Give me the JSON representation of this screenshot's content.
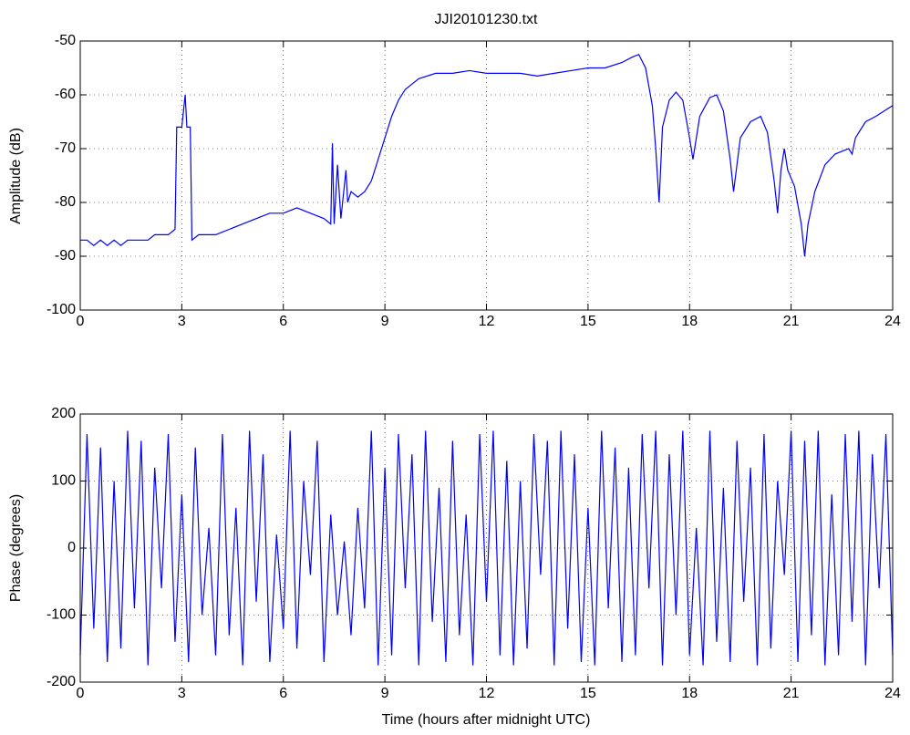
{
  "chart_data": [
    {
      "type": "line",
      "title": "JJI20101230.txt",
      "y_label": "Amplitude (dB)",
      "x": [
        0,
        0.2,
        0.4,
        0.6,
        0.8,
        1,
        1.2,
        1.4,
        1.6,
        1.8,
        2,
        2.2,
        2.4,
        2.6,
        2.8,
        2.85,
        3,
        3.1,
        3.15,
        3.25,
        3.3,
        3.5,
        3.8,
        4,
        4.4,
        4.8,
        5.2,
        5.6,
        6,
        6.4,
        6.8,
        7.2,
        7.4,
        7.45,
        7.5,
        7.6,
        7.7,
        7.85,
        7.9,
        8,
        8.2,
        8.4,
        8.6,
        8.8,
        9,
        9.2,
        9.4,
        9.6,
        9.8,
        10,
        10.5,
        11,
        11.5,
        12,
        12.5,
        13,
        13.5,
        14,
        14.5,
        15,
        15.5,
        16,
        16.3,
        16.5,
        16.7,
        16.9,
        17,
        17.1,
        17.2,
        17.4,
        17.6,
        17.8,
        18,
        18.1,
        18.3,
        18.6,
        18.8,
        19,
        19.2,
        19.3,
        19.5,
        19.8,
        20.1,
        20.3,
        20.5,
        20.6,
        20.7,
        20.8,
        20.9,
        21.1,
        21.3,
        21.4,
        21.5,
        21.7,
        22,
        22.3,
        22.7,
        22.8,
        22.9,
        23.2,
        23.5,
        24
      ],
      "series": [
        {
          "color": "#0000ff",
          "values": [
            -87,
            -87,
            -88,
            -87,
            -88,
            -87,
            -88,
            -87,
            -87,
            -87,
            -87,
            -86,
            -86,
            -86,
            -85,
            -66,
            -66,
            -60,
            -66,
            -66,
            -87,
            -86,
            -86,
            -86,
            -85,
            -84,
            -83,
            -82,
            -82,
            -81,
            -82,
            -83,
            -84,
            -69,
            -84,
            -73,
            -83,
            -74,
            -80,
            -78,
            -79,
            -78,
            -76,
            -72,
            -68,
            -64,
            -61,
            -59,
            -58,
            -57,
            -56,
            -56,
            -55.5,
            -56,
            -56,
            -56,
            -56.5,
            -56,
            -55.5,
            -55,
            -55,
            -54,
            -53,
            -52.5,
            -55,
            -62,
            -70,
            -80,
            -66,
            -61,
            -59.5,
            -61,
            -68,
            -72,
            -64,
            -60.5,
            -60,
            -63,
            -72,
            -78,
            -68,
            -65,
            -64,
            -67,
            -76,
            -82,
            -74,
            -70,
            -74,
            -77,
            -84,
            -90,
            -84,
            -78,
            -73,
            -71,
            -70,
            -71,
            -68,
            -65,
            -64,
            -62
          ]
        }
      ],
      "xlim": [
        0,
        24
      ],
      "xticks": [
        0,
        3,
        6,
        9,
        12,
        15,
        18,
        21,
        24
      ],
      "ylim": [
        -100,
        -50
      ],
      "yticks": [
        -100,
        -90,
        -80,
        -70,
        -60,
        -50
      ],
      "grid": true
    },
    {
      "type": "line",
      "x_label": "Time (hours after midnight UTC)",
      "y_label": "Phase (degrees)",
      "x": [
        0,
        0.2,
        0.4,
        0.6,
        0.8,
        1,
        1.2,
        1.4,
        1.6,
        1.8,
        2,
        2.2,
        2.4,
        2.6,
        2.8,
        3,
        3.2,
        3.4,
        3.6,
        3.8,
        4,
        4.2,
        4.4,
        4.6,
        4.8,
        5,
        5.2,
        5.4,
        5.6,
        5.8,
        6,
        6.2,
        6.4,
        6.6,
        6.8,
        7,
        7.2,
        7.4,
        7.6,
        7.8,
        8,
        8.2,
        8.4,
        8.6,
        8.8,
        9,
        9.2,
        9.4,
        9.6,
        9.8,
        10,
        10.2,
        10.4,
        10.6,
        10.8,
        11,
        11.2,
        11.4,
        11.6,
        11.8,
        12,
        12.2,
        12.4,
        12.6,
        12.8,
        13,
        13.2,
        13.4,
        13.6,
        13.8,
        14,
        14.2,
        14.4,
        14.6,
        14.8,
        15,
        15.2,
        15.4,
        15.6,
        15.8,
        16,
        16.2,
        16.4,
        16.6,
        16.8,
        17,
        17.2,
        17.4,
        17.6,
        17.8,
        18,
        18.2,
        18.4,
        18.6,
        18.8,
        19,
        19.2,
        19.4,
        19.6,
        19.8,
        20,
        20.2,
        20.4,
        20.6,
        20.8,
        21,
        21.2,
        21.4,
        21.6,
        21.8,
        22,
        22.2,
        22.4,
        22.6,
        22.8,
        23,
        23.2,
        23.4,
        23.6,
        23.8,
        24
      ],
      "series": [
        {
          "color": "#0000ff",
          "values": [
            -160,
            170,
            -120,
            150,
            -170,
            100,
            -150,
            175,
            -90,
            160,
            -175,
            120,
            -60,
            170,
            -140,
            80,
            -170,
            150,
            -100,
            30,
            -160,
            170,
            -130,
            60,
            -175,
            175,
            -80,
            140,
            -170,
            20,
            -120,
            175,
            -150,
            100,
            -40,
            160,
            -170,
            50,
            -100,
            10,
            -130,
            60,
            -90,
            175,
            -175,
            120,
            -160,
            170,
            -60,
            140,
            -175,
            175,
            -110,
            90,
            -170,
            160,
            -130,
            50,
            -175,
            170,
            -80,
            175,
            -160,
            130,
            -175,
            100,
            -150,
            170,
            -40,
            160,
            -175,
            175,
            -120,
            140,
            -170,
            60,
            -175,
            175,
            -90,
            150,
            -170,
            120,
            -160,
            170,
            -60,
            175,
            -175,
            140,
            -100,
            175,
            -160,
            30,
            -175,
            175,
            -140,
            90,
            -170,
            160,
            -80,
            120,
            -175,
            170,
            -150,
            100,
            -40,
            175,
            -170,
            160,
            -130,
            175,
            -175,
            80,
            -160,
            170,
            -110,
            175,
            -175,
            140,
            -60,
            170,
            -160
          ]
        }
      ],
      "xlim": [
        0,
        24
      ],
      "xticks": [
        0,
        3,
        6,
        9,
        12,
        15,
        18,
        21,
        24
      ],
      "ylim": [
        -200,
        200
      ],
      "yticks": [
        -200,
        -100,
        0,
        100,
        200
      ],
      "grid": true
    }
  ]
}
